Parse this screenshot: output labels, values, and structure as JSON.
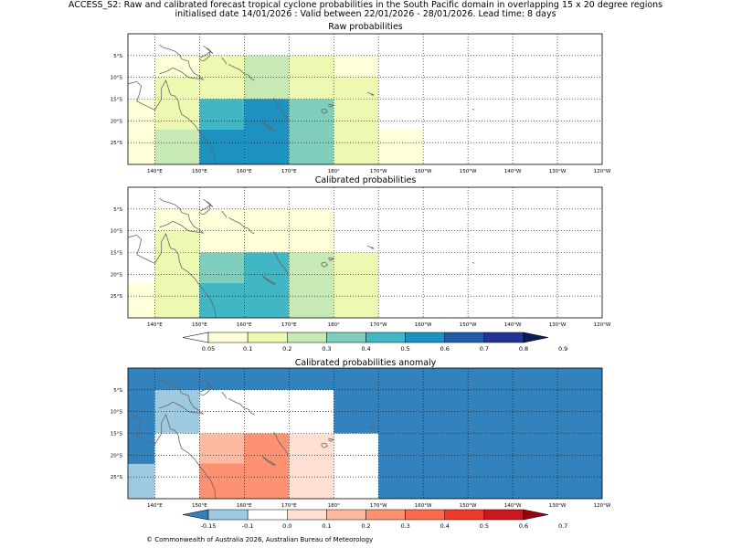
{
  "header": {
    "title_line1": "ACCESS_S2: Raw and calibrated forecast tropical cyclone probabilities in the South Pacific domain in overlapping 15 x 20 degree regions",
    "title_line2": "initialised date 14/01/2026 :  Valid between 22/01/2026 - 28/01/2026. Lead time: 8 days"
  },
  "colors": {
    "prob": [
      "#ffffff",
      "#ffffd9",
      "#edf8b1",
      "#c7e9b4",
      "#7fcdbb",
      "#41b6c4",
      "#1d91c0",
      "#225ea8",
      "#253494",
      "#081d58"
    ],
    "anom": [
      "#3182bd",
      "#9ecae1",
      "#ffffff",
      "#fee0d2",
      "#fcbba1",
      "#fc9272",
      "#fb6a4a",
      "#ef3b2c",
      "#cb181d",
      "#99000d"
    ]
  },
  "chart_data": [
    {
      "type": "heatmap",
      "name": "raw",
      "title": "Raw probabilities",
      "lon_range": [
        134,
        240
      ],
      "lat_range": [
        -30,
        0
      ],
      "cells": [
        {
          "lon": [
            140,
            150
          ],
          "lat": [
            -5,
            -10
          ],
          "cls": 1
        },
        {
          "lon": [
            150,
            160
          ],
          "lat": [
            -5,
            -15
          ],
          "cls": 2
        },
        {
          "lon": [
            160,
            170
          ],
          "lat": [
            -5,
            -15
          ],
          "cls": 3
        },
        {
          "lon": [
            170,
            180
          ],
          "lat": [
            -5,
            -15
          ],
          "cls": 2
        },
        {
          "lon": [
            180,
            190
          ],
          "lat": [
            -5,
            -10
          ],
          "cls": 1
        },
        {
          "lon": [
            180,
            190
          ],
          "lat": [
            -10,
            -15
          ],
          "cls": 2
        },
        {
          "lon": [
            134,
            140
          ],
          "lat": [
            -15,
            -30
          ],
          "cls": 1
        },
        {
          "lon": [
            140,
            150
          ],
          "lat": [
            -10,
            -22
          ],
          "cls": 2
        },
        {
          "lon": [
            140,
            150
          ],
          "lat": [
            -22,
            -30
          ],
          "cls": 3
        },
        {
          "lon": [
            150,
            160
          ],
          "lat": [
            -15,
            -22
          ],
          "cls": 5
        },
        {
          "lon": [
            150,
            160
          ],
          "lat": [
            -22,
            -30
          ],
          "cls": 6
        },
        {
          "lon": [
            160,
            170
          ],
          "lat": [
            -15,
            -30
          ],
          "cls": 6
        },
        {
          "lon": [
            170,
            180
          ],
          "lat": [
            -15,
            -30
          ],
          "cls": 4
        },
        {
          "lon": [
            180,
            190
          ],
          "lat": [
            -15,
            -30
          ],
          "cls": 2
        },
        {
          "lon": [
            190,
            200
          ],
          "lat": [
            -22,
            -30
          ],
          "cls": 1
        }
      ]
    },
    {
      "type": "heatmap",
      "name": "calibrated",
      "title": "Calibrated probabilities",
      "lon_range": [
        134,
        240
      ],
      "lat_range": [
        -30,
        0
      ],
      "cells": [
        {
          "lon": [
            140,
            150
          ],
          "lat": [
            -5,
            -10
          ],
          "cls": 1
        },
        {
          "lon": [
            150,
            180
          ],
          "lat": [
            -5,
            -15
          ],
          "cls": 1
        },
        {
          "lon": [
            134,
            140
          ],
          "lat": [
            -22,
            -30
          ],
          "cls": 1
        },
        {
          "lon": [
            140,
            150
          ],
          "lat": [
            -10,
            -30
          ],
          "cls": 2
        },
        {
          "lon": [
            150,
            160
          ],
          "lat": [
            -15,
            -22
          ],
          "cls": 4
        },
        {
          "lon": [
            150,
            160
          ],
          "lat": [
            -22,
            -30
          ],
          "cls": 5
        },
        {
          "lon": [
            160,
            170
          ],
          "lat": [
            -15,
            -30
          ],
          "cls": 5
        },
        {
          "lon": [
            170,
            180
          ],
          "lat": [
            -15,
            -30
          ],
          "cls": 3
        },
        {
          "lon": [
            180,
            190
          ],
          "lat": [
            -15,
            -30
          ],
          "cls": 2
        }
      ]
    },
    {
      "type": "heatmap",
      "name": "anomaly",
      "title": "Calibrated probabilities anomaly",
      "lon_range": [
        134,
        240
      ],
      "lat_range": [
        -30,
        0
      ],
      "background_cls": 0,
      "cells": [
        {
          "lon": [
            140,
            150
          ],
          "lat": [
            -5,
            -15
          ],
          "cls": 1
        },
        {
          "lon": [
            150,
            180
          ],
          "lat": [
            -5,
            -15
          ],
          "cls": 2
        },
        {
          "lon": [
            134,
            140
          ],
          "lat": [
            -22,
            -30
          ],
          "cls": 1
        },
        {
          "lon": [
            140,
            150
          ],
          "lat": [
            -15,
            -30
          ],
          "cls": 2
        },
        {
          "lon": [
            150,
            160
          ],
          "lat": [
            -15,
            -22
          ],
          "cls": 4
        },
        {
          "lon": [
            150,
            160
          ],
          "lat": [
            -22,
            -30
          ],
          "cls": 5
        },
        {
          "lon": [
            160,
            170
          ],
          "lat": [
            -15,
            -30
          ],
          "cls": 5
        },
        {
          "lon": [
            170,
            180
          ],
          "lat": [
            -15,
            -30
          ],
          "cls": 3
        },
        {
          "lon": [
            180,
            190
          ],
          "lat": [
            -15,
            -30
          ],
          "cls": 2
        }
      ]
    }
  ],
  "axes": {
    "lat_ticks": [
      "5°S",
      "10°S",
      "15°S",
      "20°S",
      "25°S"
    ],
    "lat_values": [
      -5,
      -10,
      -15,
      -20,
      -25
    ],
    "lon_ticks": [
      "140°E",
      "150°E",
      "160°E",
      "170°E",
      "180°",
      "170°W",
      "160°W",
      "150°W",
      "140°W",
      "130°W",
      "120°W"
    ],
    "lon_values": [
      140,
      150,
      160,
      170,
      180,
      190,
      200,
      210,
      220,
      230,
      240
    ]
  },
  "colorbars": {
    "prob_labels": [
      "0.05",
      "0.1",
      "0.2",
      "0.3",
      "0.4",
      "0.5",
      "0.6",
      "0.7",
      "0.8",
      "0.9"
    ],
    "anom_labels": [
      "-0.15",
      "-0.1",
      "0.0",
      "0.1",
      "0.2",
      "0.3",
      "0.4",
      "0.5",
      "0.6",
      "0.7"
    ]
  },
  "footer": {
    "copyright": "© Commonwealth of Australia 2026, Australian Bureau of Meteorology"
  }
}
